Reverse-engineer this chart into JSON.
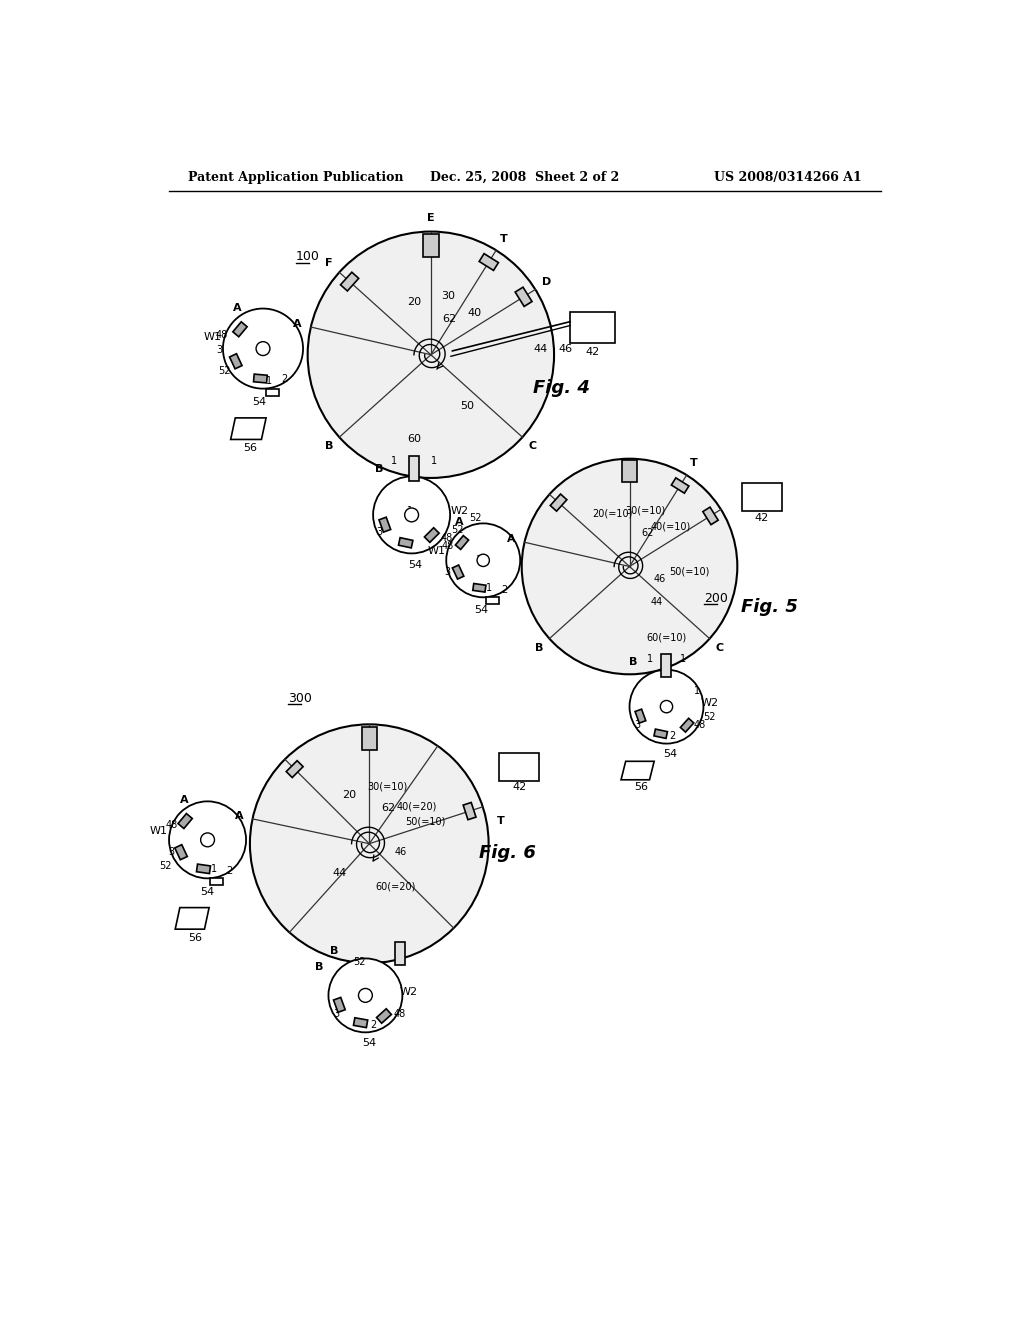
{
  "title_left": "Patent Application Publication",
  "title_mid": "Dec. 25, 2008  Sheet 2 of 2",
  "title_right": "US 2008/0314266 A1",
  "bg_color": "#ffffff",
  "line_color": "#000000",
  "fig4_label": "Fig. 4",
  "fig5_label": "Fig. 5",
  "fig6_label": "Fig. 6",
  "fig4_num": "100",
  "fig5_num": "200",
  "fig6_num": "300"
}
